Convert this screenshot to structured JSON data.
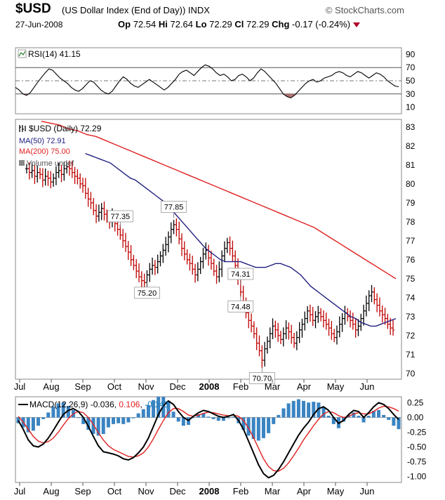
{
  "header": {
    "symbol": "$USD",
    "name": "(US Dollar Index (End of Day)) INDX",
    "brand": "© StockCharts.com",
    "date": "27-Jun-2008",
    "op_label": "Op",
    "op": "72.54",
    "hi_label": "Hi",
    "hi": "72.64",
    "lo_label": "Lo",
    "lo": "72.29",
    "cl_label": "Cl",
    "cl": "72.29",
    "chg_label": "Chg",
    "chg": "-0.17 (-0.24%)"
  },
  "chart_data": [
    {
      "type": "line",
      "panel": "rsi",
      "legend": "RSI(14) 41.15",
      "yticks": [
        90,
        70,
        50,
        30,
        10
      ],
      "ylim": [
        0,
        100
      ],
      "reference_lines": [
        70,
        50,
        30
      ],
      "series": [
        {
          "values": [
            40,
            36,
            30,
            28,
            32,
            40,
            48,
            55,
            62,
            68,
            66,
            60,
            54,
            50,
            46,
            40,
            36,
            34,
            38,
            44,
            50,
            48,
            42,
            36,
            32,
            30,
            34,
            42,
            50,
            56,
            52,
            46,
            42,
            40,
            44,
            48,
            52,
            48,
            44,
            40,
            36,
            40,
            46,
            52,
            60,
            64,
            66,
            62,
            58,
            64,
            70,
            74,
            72,
            68,
            62,
            58,
            60,
            56,
            50,
            52,
            58,
            60,
            56,
            50,
            54,
            62,
            68,
            64,
            58,
            52,
            46,
            38,
            30,
            26,
            24,
            28,
            34,
            40,
            46,
            50,
            52,
            48,
            50,
            54,
            56,
            58,
            62,
            64,
            62,
            58,
            56,
            60,
            64,
            62,
            58,
            54,
            58,
            62,
            60,
            56,
            50,
            46,
            42,
            41
          ]
        }
      ]
    },
    {
      "type": "ohlc",
      "panel": "price",
      "legend": {
        "price": "$USD (Daily) 72.29",
        "ma50": "MA(50) 72.91",
        "ma200": "MA(200) 75.00",
        "volume": "Volume undef"
      },
      "ylim": [
        69.7,
        83.4
      ],
      "yticks": [
        83,
        82,
        81,
        80,
        79,
        78,
        77,
        76,
        75,
        74,
        73,
        72,
        71,
        70
      ],
      "xticks": [
        "Jul",
        "Aug",
        "Sep",
        "Oct",
        "Nov",
        "Dec",
        "2008",
        "Feb",
        "Mar",
        "Apr",
        "May",
        "Jun"
      ],
      "close": [
        80.8,
        80.6,
        80.7,
        80.4,
        80.6,
        80.5,
        80.2,
        80.4,
        80.3,
        80.1,
        80.3,
        80.6,
        80.7,
        80.5,
        80.8,
        80.9,
        80.8,
        80.6,
        80.4,
        80.3,
        80.0,
        79.9,
        79.5,
        79.2,
        79.0,
        78.6,
        78.3,
        78.5,
        78.7,
        78.4,
        78.2,
        78.0,
        78.3,
        77.9,
        77.6,
        77.3,
        77.0,
        76.7,
        76.4,
        76.0,
        75.7,
        75.4,
        75.1,
        74.9,
        74.8,
        75.2,
        75.5,
        75.7,
        75.6,
        75.9,
        76.2,
        76.5,
        76.8,
        77.2,
        77.6,
        77.85,
        77.6,
        77.1,
        76.6,
        76.3,
        76.0,
        75.8,
        75.5,
        75.2,
        75.5,
        75.9,
        76.3,
        76.5,
        76.1,
        75.8,
        75.4,
        75.1,
        75.5,
        76.2,
        76.6,
        76.9,
        76.6,
        76.2,
        75.7,
        75.0,
        74.3,
        73.6,
        73.2,
        72.8,
        72.5,
        72.1,
        71.6,
        71.2,
        70.7,
        71.3,
        71.7,
        72.1,
        72.5,
        72.3,
        72.0,
        71.8,
        72.1,
        72.4,
        72.2,
        71.9,
        71.6,
        71.9,
        72.3,
        72.6,
        72.9,
        73.3,
        73.1,
        72.8,
        73.0,
        73.2,
        73.0,
        72.8,
        72.6,
        72.4,
        72.1,
        71.9,
        72.2,
        72.6,
        72.9,
        73.2,
        73.0,
        72.8,
        72.6,
        72.3,
        72.5,
        72.9,
        73.3,
        73.7,
        74.1,
        74.3,
        73.9,
        73.6,
        73.3,
        73.1,
        72.9,
        72.6,
        72.4,
        72.29
      ],
      "ma50": [
        81.6,
        81.5,
        81.4,
        81.3,
        81.2,
        81.1,
        80.9,
        80.7,
        80.5,
        80.3,
        80.2,
        80.0,
        79.8,
        79.6,
        79.4,
        79.2,
        79.0,
        78.7,
        78.4,
        78.1,
        77.8,
        77.5,
        77.2,
        76.9,
        76.6,
        76.4,
        76.2,
        76.0,
        75.9,
        75.9,
        75.9,
        75.9,
        75.8,
        75.7,
        75.6,
        75.6,
        75.6,
        75.7,
        75.8,
        75.8,
        75.7,
        75.6,
        75.4,
        75.2,
        74.9,
        74.6,
        74.4,
        74.2,
        74.0,
        73.8,
        73.6,
        73.4,
        73.2,
        73.0,
        72.9,
        72.7,
        72.6,
        72.5,
        72.5,
        72.6,
        72.7,
        72.8,
        72.9
      ],
      "ma200": [
        83.3,
        83.2,
        83.1,
        82.9,
        82.8,
        82.6,
        82.5,
        82.3,
        82.1,
        81.9,
        81.7,
        81.5,
        81.3,
        81.1,
        80.9,
        80.7,
        80.5,
        80.3,
        80.1,
        79.9,
        79.7,
        79.5,
        79.3,
        79.1,
        78.9,
        78.7,
        78.5,
        78.3,
        78.1,
        77.9,
        77.7,
        77.4,
        77.1,
        76.8,
        76.5,
        76.2,
        75.9,
        75.6,
        75.3,
        75.0
      ],
      "annotations": [
        {
          "label": "74.48",
          "value": 74.48
        },
        {
          "label": "77.85",
          "value": 77.85
        },
        {
          "label": "77.35",
          "value": 77.35
        },
        {
          "label": "75.20",
          "value": 75.2
        },
        {
          "label": "70.70",
          "value": 70.7
        },
        {
          "label": "74.31",
          "value": 74.31
        }
      ]
    },
    {
      "type": "line",
      "panel": "macd",
      "legend": {
        "name": "MACD(12,26,9)",
        "macd": "-0.036",
        "signal": "0.106",
        "hist": "-0.143"
      },
      "ylim": [
        -1.1,
        0.35
      ],
      "yticks": [
        "0.25",
        "0.00",
        "-0.25",
        "-0.50",
        "-0.75",
        "-1.00"
      ],
      "ytick_values": [
        0.25,
        0,
        -0.25,
        -0.5,
        -0.75,
        -1.0
      ],
      "xticks": [
        "Jul",
        "Aug",
        "Sep",
        "Oct",
        "Nov",
        "Dec",
        "2008",
        "Feb",
        "Mar",
        "Apr",
        "May",
        "Jun"
      ],
      "macd": [
        -0.05,
        -0.2,
        -0.38,
        -0.48,
        -0.5,
        -0.45,
        -0.35,
        -0.22,
        -0.08,
        0.05,
        0.12,
        0.15,
        0.1,
        0.0,
        -0.15,
        -0.32,
        -0.48,
        -0.58,
        -0.6,
        -0.62,
        -0.65,
        -0.7,
        -0.72,
        -0.68,
        -0.6,
        -0.5,
        -0.35,
        -0.15,
        0.05,
        0.2,
        0.28,
        0.22,
        0.1,
        0.0,
        -0.05,
        0.02,
        0.08,
        0.12,
        0.1,
        0.06,
        0.02,
        0.0,
        0.02,
        0.05,
        -0.05,
        -0.2,
        -0.4,
        -0.6,
        -0.8,
        -0.95,
        -1.02,
        -0.98,
        -0.88,
        -0.75,
        -0.6,
        -0.45,
        -0.3,
        -0.18,
        -0.08,
        0.05,
        0.15,
        0.18,
        0.12,
        0.0,
        -0.1,
        -0.05,
        0.05,
        0.12,
        0.1,
        0.0,
        0.08,
        0.18,
        0.25,
        0.22,
        0.15,
        0.05,
        -0.036
      ],
      "signal": [
        0.02,
        -0.08,
        -0.2,
        -0.32,
        -0.4,
        -0.43,
        -0.41,
        -0.35,
        -0.25,
        -0.13,
        -0.02,
        0.06,
        0.1,
        0.08,
        0.0,
        -0.12,
        -0.26,
        -0.38,
        -0.48,
        -0.54,
        -0.58,
        -0.62,
        -0.66,
        -0.67,
        -0.65,
        -0.6,
        -0.5,
        -0.36,
        -0.2,
        -0.05,
        0.08,
        0.15,
        0.15,
        0.1,
        0.04,
        0.02,
        0.04,
        0.07,
        0.09,
        0.08,
        0.06,
        0.04,
        0.03,
        0.04,
        0.02,
        -0.05,
        -0.18,
        -0.34,
        -0.52,
        -0.7,
        -0.83,
        -0.9,
        -0.91,
        -0.86,
        -0.77,
        -0.65,
        -0.52,
        -0.38,
        -0.26,
        -0.14,
        -0.03,
        0.06,
        0.1,
        0.08,
        0.03,
        0.0,
        0.02,
        0.06,
        0.08,
        0.06,
        0.06,
        0.1,
        0.16,
        0.19,
        0.18,
        0.15,
        0.106
      ]
    }
  ]
}
